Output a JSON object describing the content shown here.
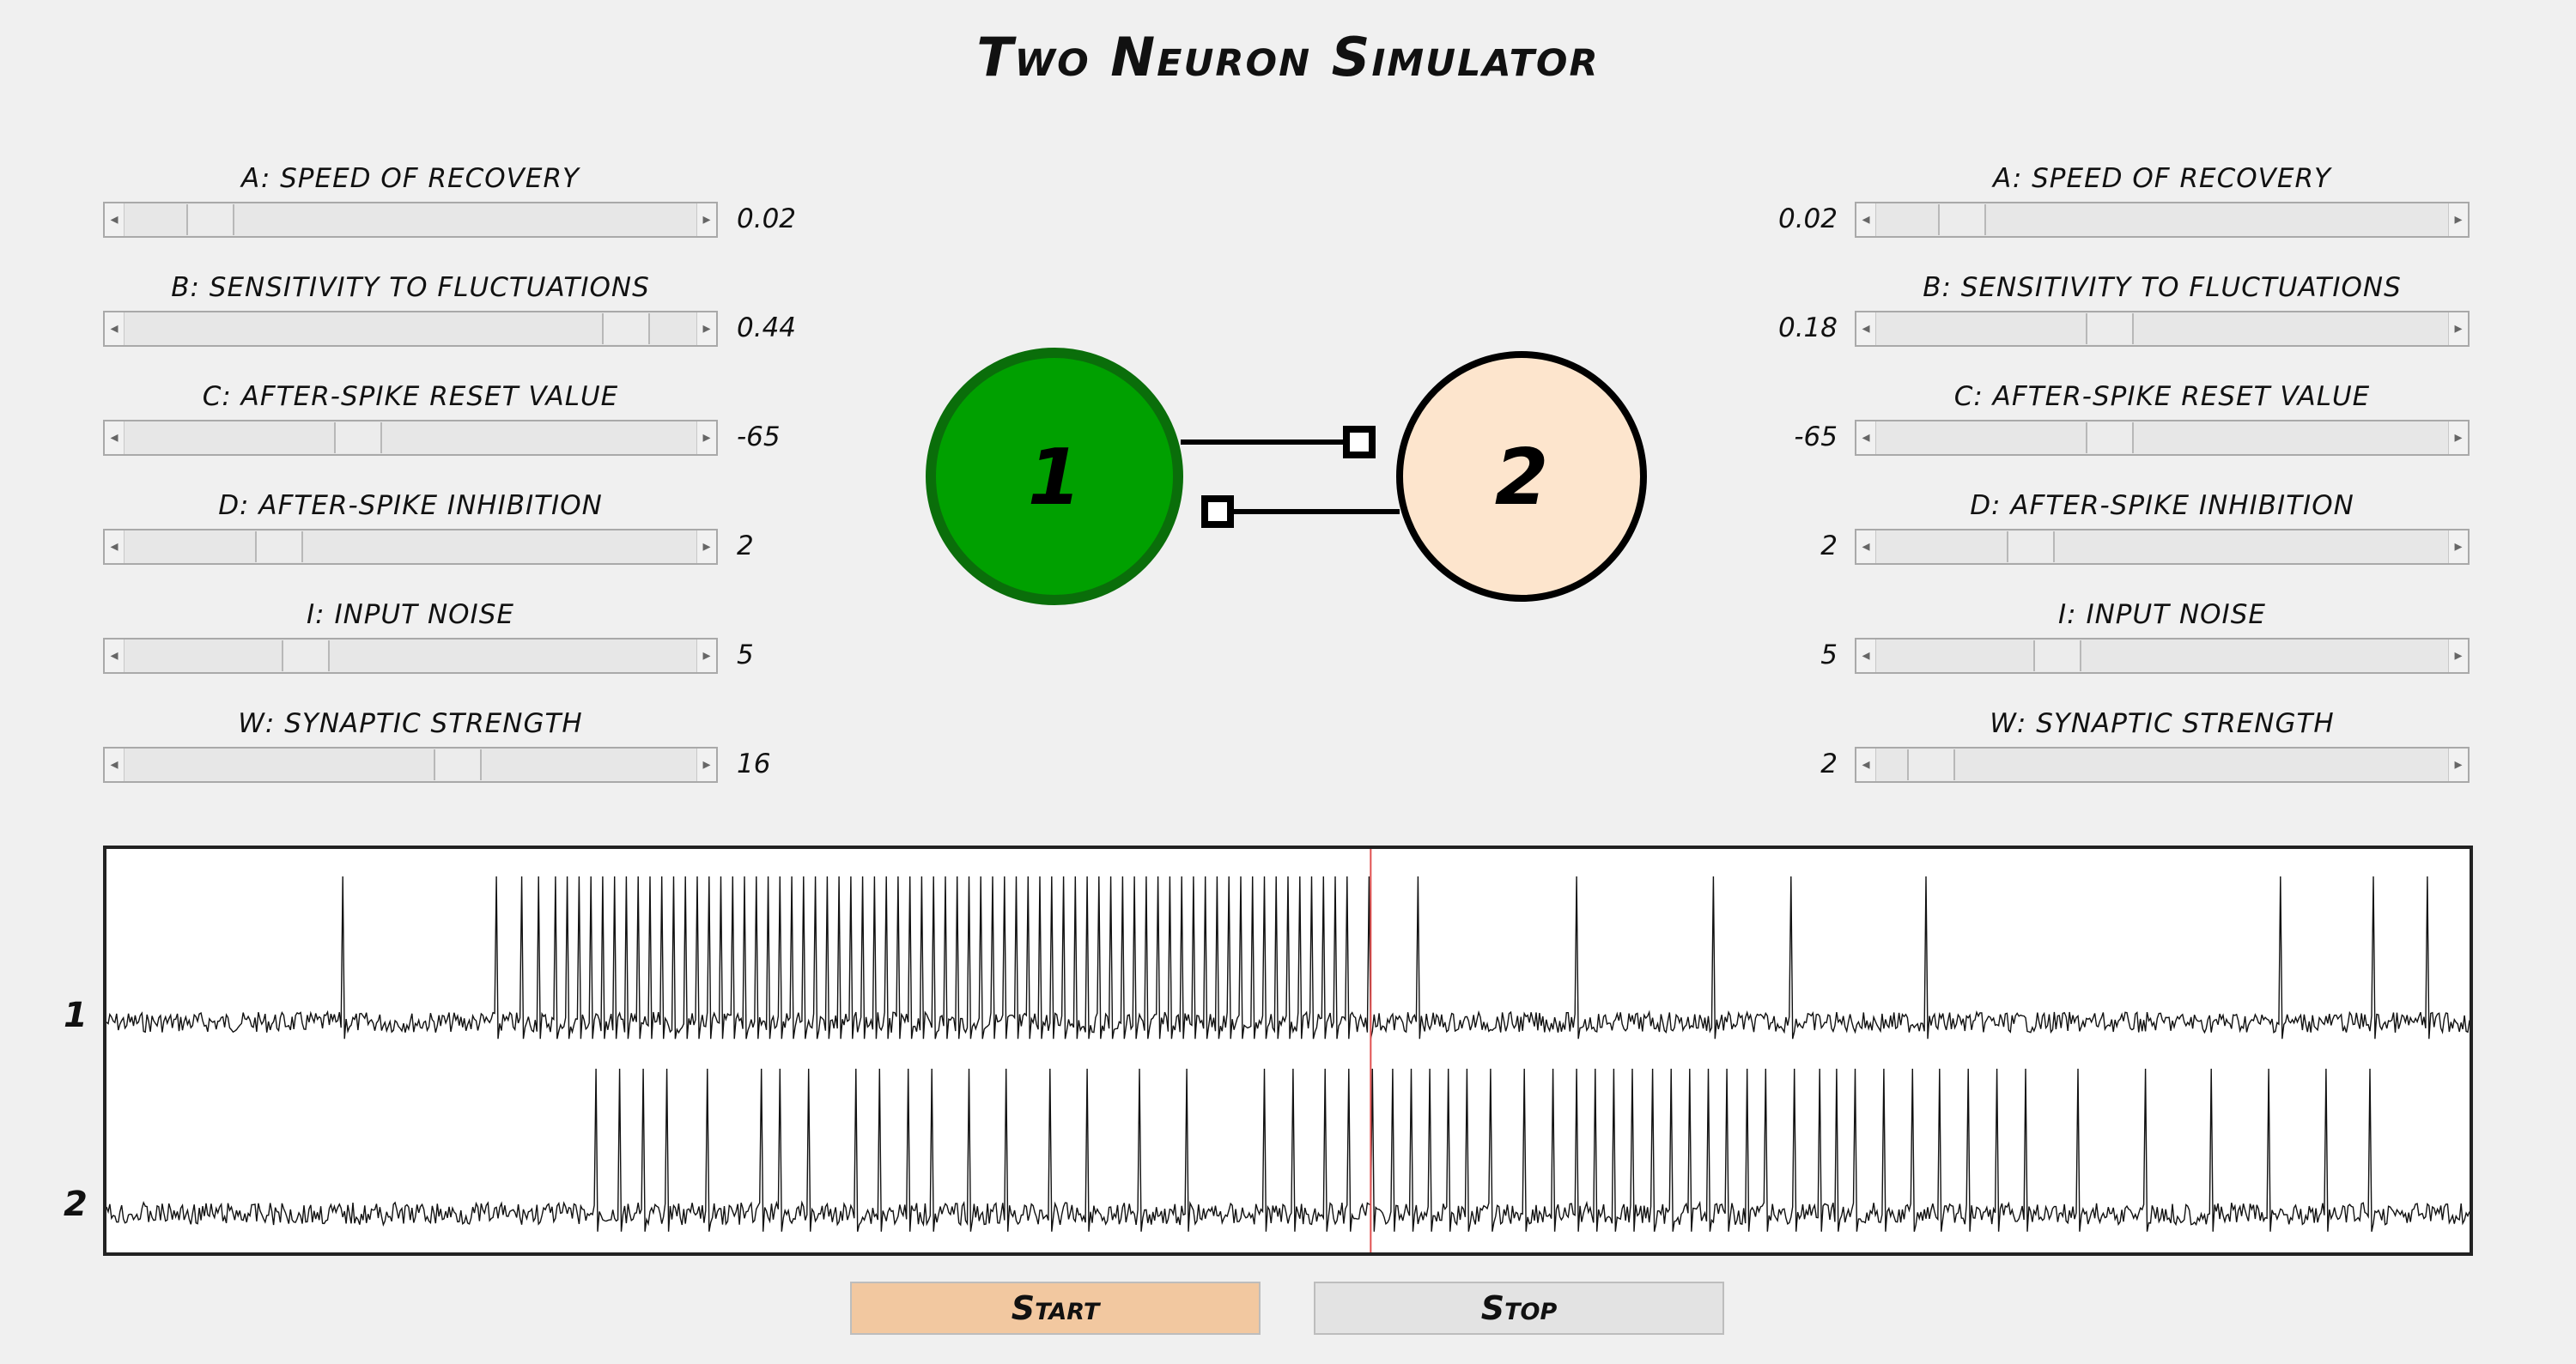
{
  "app": {
    "title": "Two Neuron Simulator"
  },
  "left_controls": [
    {
      "label": "A: speed of recovery",
      "value": "0.02",
      "position": 0.12
    },
    {
      "label": "B: sensitivity to fluctuations",
      "value": "0.44",
      "position": 0.91
    },
    {
      "label": "C: after-spike reset value",
      "value": "-65",
      "position": 0.4
    },
    {
      "label": "D: after-spike inhibition",
      "value": "2",
      "position": 0.25
    },
    {
      "label": "I: input noise",
      "value": "5",
      "position": 0.3
    },
    {
      "label": "W: synaptic strength",
      "value": "16",
      "position": 0.59
    }
  ],
  "right_controls": [
    {
      "label": "A: speed of recovery",
      "value": "0.02",
      "position": 0.12
    },
    {
      "label": "B: sensitivity to fluctuations",
      "value": "0.18",
      "position": 0.4
    },
    {
      "label": "C: after-spike reset value",
      "value": "-65",
      "position": 0.4
    },
    {
      "label": "D: after-spike inhibition",
      "value": "2",
      "position": 0.25
    },
    {
      "label": "I: input noise",
      "value": "5",
      "position": 0.3
    },
    {
      "label": "W: synaptic strength",
      "value": "2",
      "position": 0.06
    }
  ],
  "network": {
    "neuron1": {
      "label": "1",
      "fill": "#00a000",
      "stroke": "#0a6e0a"
    },
    "neuron2": {
      "label": "2",
      "fill": "#fde5cd",
      "stroke": "#000000"
    }
  },
  "traces": {
    "labels": [
      "1",
      "2"
    ],
    "cursor_fraction": 0.535,
    "cursor_color": "#e05050",
    "neuron1_spike_times": [
      0.1,
      0.165,
      0.176,
      0.183,
      0.19,
      0.195,
      0.2,
      0.205,
      0.21,
      0.215,
      0.22,
      0.225,
      0.23,
      0.235,
      0.24,
      0.245,
      0.25,
      0.255,
      0.26,
      0.265,
      0.27,
      0.275,
      0.28,
      0.285,
      0.29,
      0.295,
      0.3,
      0.305,
      0.31,
      0.315,
      0.32,
      0.325,
      0.33,
      0.335,
      0.34,
      0.345,
      0.35,
      0.355,
      0.36,
      0.365,
      0.37,
      0.375,
      0.38,
      0.385,
      0.39,
      0.395,
      0.4,
      0.405,
      0.41,
      0.415,
      0.42,
      0.425,
      0.43,
      0.435,
      0.44,
      0.445,
      0.45,
      0.455,
      0.46,
      0.465,
      0.47,
      0.475,
      0.48,
      0.485,
      0.49,
      0.495,
      0.5,
      0.505,
      0.51,
      0.515,
      0.52,
      0.525,
      0.534,
      0.555,
      0.622,
      0.68,
      0.713,
      0.77,
      0.92,
      0.959,
      0.982
    ],
    "neuron2_spike_times": [
      0.207,
      0.217,
      0.227,
      0.237,
      0.254,
      0.277,
      0.285,
      0.297,
      0.317,
      0.327,
      0.339,
      0.349,
      0.365,
      0.381,
      0.399,
      0.415,
      0.437,
      0.457,
      0.49,
      0.502,
      0.516,
      0.526,
      0.536,
      0.544,
      0.552,
      0.56,
      0.568,
      0.576,
      0.586,
      0.6,
      0.612,
      0.622,
      0.63,
      0.638,
      0.646,
      0.654,
      0.662,
      0.67,
      0.678,
      0.686,
      0.694,
      0.702,
      0.714,
      0.725,
      0.732,
      0.74,
      0.752,
      0.764,
      0.776,
      0.788,
      0.8,
      0.812,
      0.834,
      0.863,
      0.891,
      0.915,
      0.939,
      0.958
    ]
  },
  "buttons": {
    "start": "Start",
    "stop": "Stop"
  }
}
